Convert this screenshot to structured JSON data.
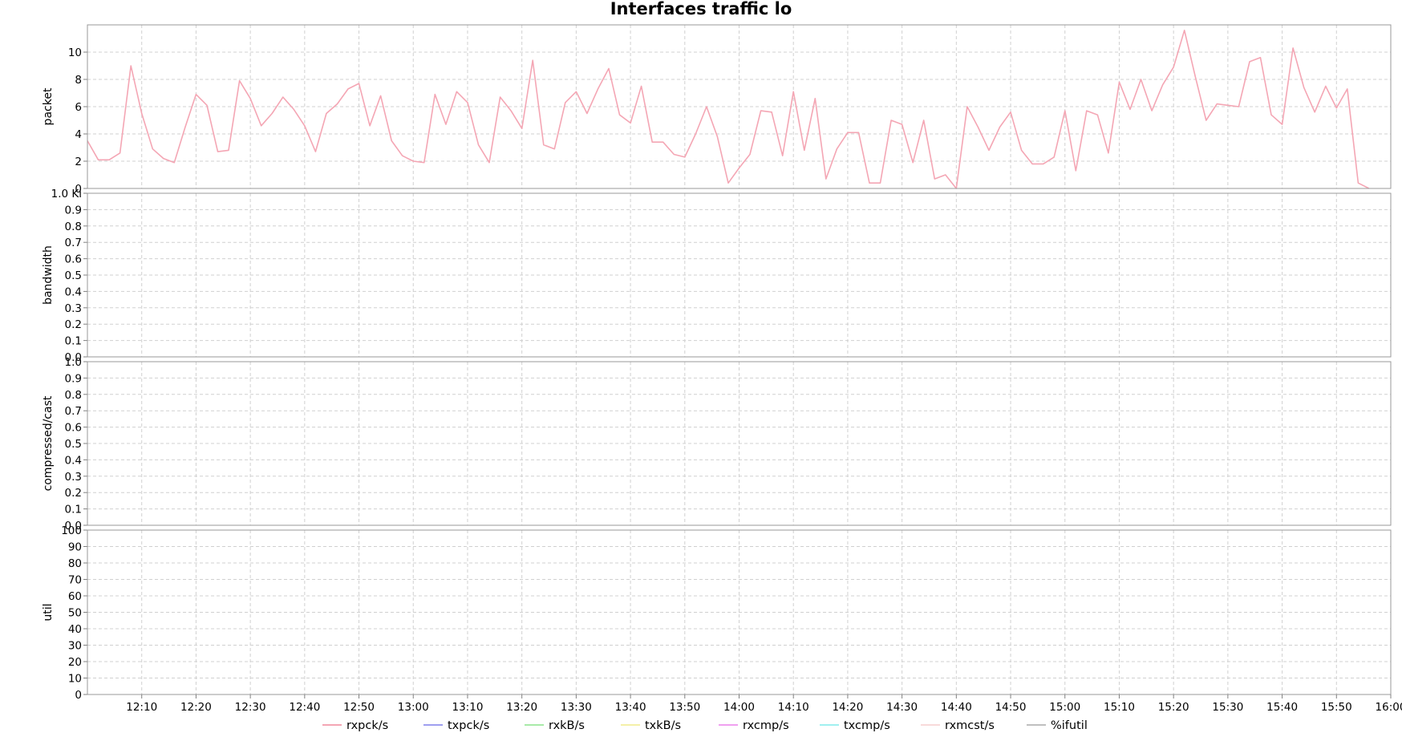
{
  "chart_data": {
    "type": "line",
    "title": "Interfaces traffic lo",
    "x": {
      "start": "12:00",
      "end": "15:58",
      "step_minutes": 2,
      "tick_labels": [
        "12:10",
        "12:20",
        "12:30",
        "12:40",
        "12:50",
        "13:00",
        "13:10",
        "13:20",
        "13:30",
        "13:40",
        "13:50",
        "14:00",
        "14:10",
        "14:20",
        "14:30",
        "14:40",
        "14:50",
        "15:00",
        "15:10",
        "15:20",
        "15:30",
        "15:40",
        "15:50",
        "16:00"
      ]
    },
    "panels": [
      {
        "ylabel": "packet",
        "ylim": [
          0,
          12
        ],
        "yticks": [
          "0",
          "2",
          "4",
          "6",
          "8",
          "10"
        ],
        "series": [
          {
            "name": "rxpck/s",
            "color": "#f4a6b4",
            "values": [
              3.5,
              2.1,
              2.1,
              2.6,
              9.0,
              5.5,
              2.9,
              2.2,
              1.9,
              4.5,
              6.9,
              6.1,
              2.7,
              2.8,
              7.9,
              6.6,
              4.6,
              5.5,
              6.7,
              5.8,
              4.6,
              2.7,
              5.5,
              6.2,
              7.3,
              7.7,
              4.6,
              6.8,
              3.5,
              2.4,
              2.0,
              1.9,
              6.9,
              4.7,
              7.1,
              6.3,
              3.2,
              1.9,
              6.7,
              5.7,
              4.4,
              9.4,
              3.2,
              2.9,
              6.3,
              7.1,
              5.5,
              7.3,
              8.8,
              5.4,
              4.8,
              7.5,
              3.4,
              3.4,
              2.5,
              2.3,
              4.0,
              6.0,
              3.8,
              0.4,
              1.5,
              2.5,
              5.7,
              5.6,
              2.4,
              7.1,
              2.8,
              6.6,
              0.7,
              2.9,
              4.1,
              4.1,
              0.4,
              0.4,
              5.0,
              4.7,
              1.9,
              5.0,
              0.7,
              1.0,
              0.0,
              6.0,
              4.5,
              2.8,
              4.5,
              5.6,
              2.8,
              1.8,
              1.8,
              2.3,
              5.7,
              1.3,
              5.7,
              5.4,
              2.6,
              7.8,
              5.8,
              8.0,
              5.7,
              7.6,
              8.9,
              11.6,
              8.2,
              5.0,
              6.2,
              6.1,
              6.0,
              9.3,
              9.6,
              5.4,
              4.7,
              10.3,
              7.4,
              5.6,
              7.5,
              5.9,
              7.3,
              0.4,
              0.0
            ]
          }
        ]
      },
      {
        "ylabel": "bandwidth",
        "ylim": [
          0,
          1.0
        ],
        "yticks": [
          "0.0",
          "0.1",
          "0.2",
          "0.3",
          "0.4",
          "0.5",
          "0.6",
          "0.7",
          "0.8",
          "0.9",
          "1.0 Ki"
        ],
        "series": []
      },
      {
        "ylabel": "compressed/cast",
        "ylim": [
          0,
          1.0
        ],
        "yticks": [
          "0.0",
          "0.1",
          "0.2",
          "0.3",
          "0.4",
          "0.5",
          "0.6",
          "0.7",
          "0.8",
          "0.9",
          "1.0"
        ],
        "series": []
      },
      {
        "ylabel": "util",
        "ylim": [
          0,
          100
        ],
        "yticks": [
          "0",
          "10",
          "20",
          "30",
          "40",
          "50",
          "60",
          "70",
          "80",
          "90",
          "100"
        ],
        "series": []
      }
    ],
    "legend": {
      "placement": "bottom",
      "items": [
        {
          "name": "rxpck/s",
          "color": "#f4a6b4"
        },
        {
          "name": "txpck/s",
          "color": "#9f9ff0"
        },
        {
          "name": "rxkB/s",
          "color": "#a8eaa8"
        },
        {
          "name": "txkB/s",
          "color": "#f4f0a8"
        },
        {
          "name": "rxcmp/s",
          "color": "#f0a0f0"
        },
        {
          "name": "txcmp/s",
          "color": "#a0f0f0"
        },
        {
          "name": "rxmcst/s",
          "color": "#f8dada"
        },
        {
          "name": "%ifutil",
          "color": "#bfbfbf"
        }
      ]
    },
    "grid": true
  }
}
